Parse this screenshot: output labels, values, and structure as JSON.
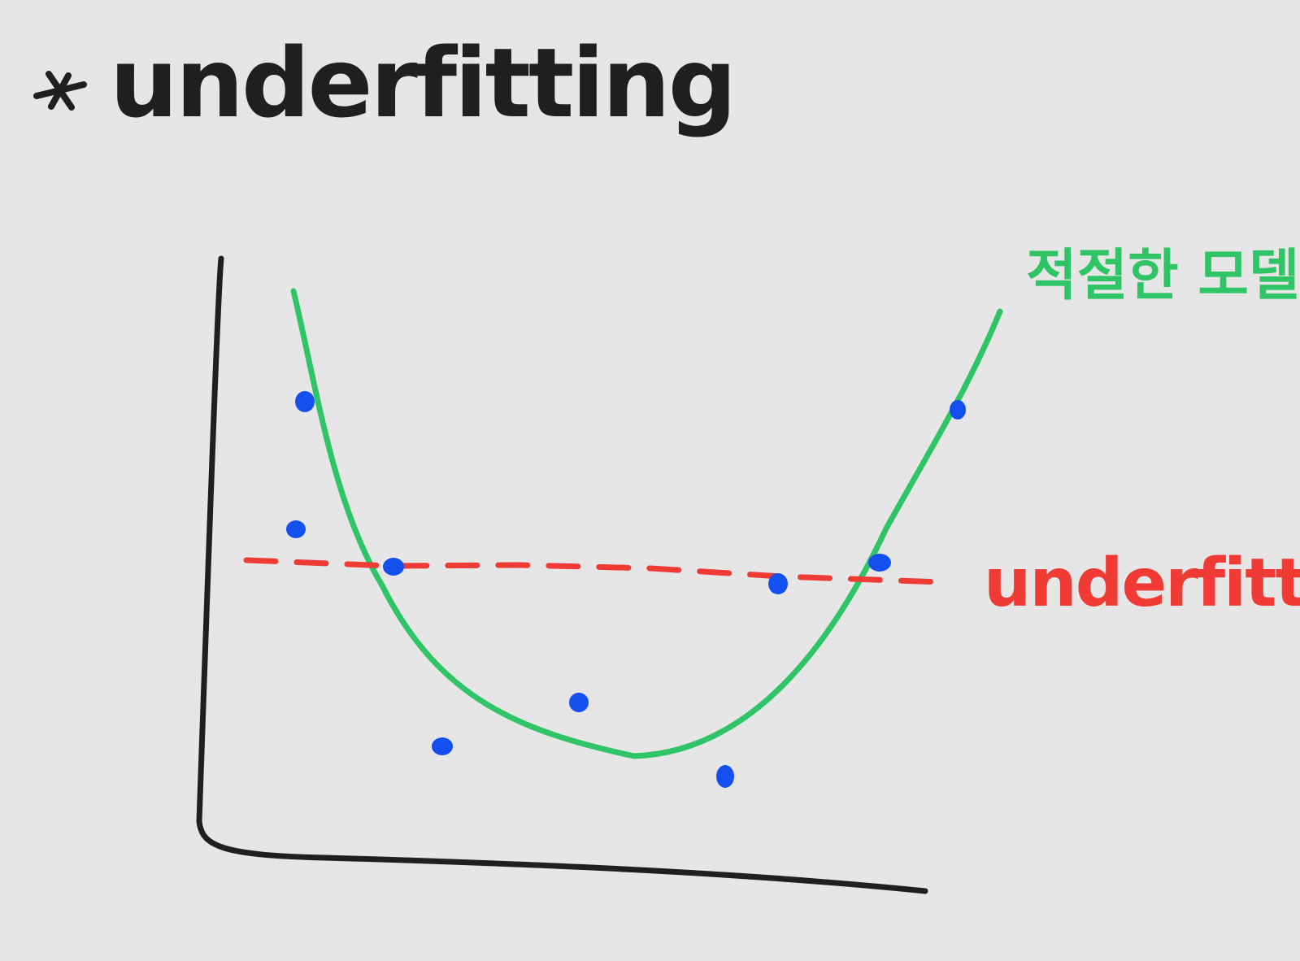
{
  "title": {
    "bullet": "*",
    "text": "underfitting"
  },
  "labels": {
    "good_model": "적절한 모델",
    "underfitting": "underfitting"
  },
  "colors": {
    "background": "#e6e6e6",
    "axis": "#1f1f1f",
    "good_model_curve": "#2fc466",
    "underfitting_line": "#f03a34",
    "data_points": "#1450f0"
  },
  "chart_data": {
    "type": "scatter",
    "description_elements": [
      "data points",
      "green curve",
      "red dashed horizontal line"
    ],
    "points": [
      {
        "x": 1,
        "y": 8.9
      },
      {
        "x": 1,
        "y": 7.0
      },
      {
        "x": 2,
        "y": 6.6
      },
      {
        "x": 3,
        "y": 4.0
      },
      {
        "x": 4,
        "y": 4.6
      },
      {
        "x": 5,
        "y": 3.9
      },
      {
        "x": 6,
        "y": 6.5
      },
      {
        "x": 7,
        "y": 6.6
      },
      {
        "x": 8,
        "y": 8.8
      }
    ],
    "series": [
      {
        "name": "적절한 모델",
        "style": "solid",
        "color": "#2fc466"
      },
      {
        "name": "underfitting",
        "style": "dashed",
        "color": "#f03a34"
      }
    ]
  }
}
